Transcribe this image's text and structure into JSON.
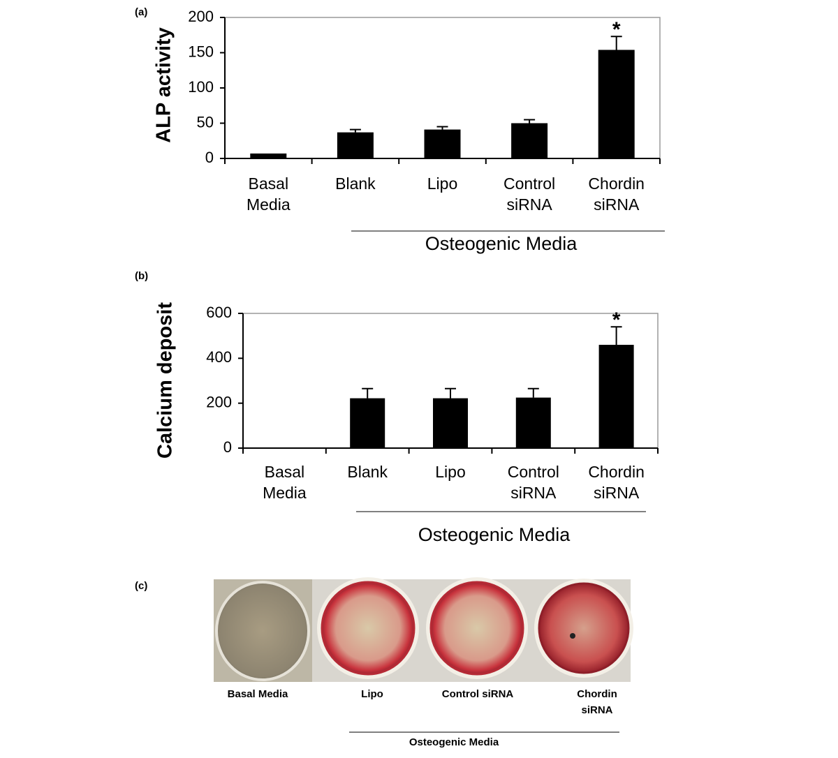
{
  "chart_data": [
    {
      "type": "bar",
      "panel_label": "(a)",
      "ylabel": "ALP activity",
      "categories": [
        "Basal Media",
        "Blank",
        "Lipo",
        "Control siRNA",
        "Chordin siRNA"
      ],
      "values": [
        7,
        37,
        41,
        50,
        154
      ],
      "errors": [
        null,
        4,
        4,
        5,
        19
      ],
      "color": "#000000",
      "ylim": [
        0,
        200
      ],
      "yticks": [
        0,
        50,
        100,
        150,
        200
      ],
      "grid": false,
      "annotation": {
        "text": "*",
        "category": "Chordin siRNA"
      },
      "group_label": "Osteogenic Media"
    },
    {
      "type": "bar",
      "panel_label": "(b)",
      "ylabel": "Calcium deposit",
      "categories": [
        "Basal Media",
        "Blank",
        "Lipo",
        "Control siRNA",
        "Chordin siRNA"
      ],
      "values": [
        0,
        222,
        222,
        225,
        460
      ],
      "errors": [
        null,
        43,
        43,
        40,
        80
      ],
      "color": "#000000",
      "ylim": [
        0,
        600
      ],
      "yticks": [
        0,
        200,
        400,
        600
      ],
      "grid": false,
      "annotation": {
        "text": "*",
        "category": "Chordin siRNA"
      },
      "group_label": "Osteogenic Media"
    }
  ],
  "panel_c": {
    "label": "(c)",
    "wells": [
      "Basal Media",
      "Lipo",
      "Control siRNA",
      "Chordin siRNA"
    ],
    "group_label": "Osteogenic Media"
  }
}
